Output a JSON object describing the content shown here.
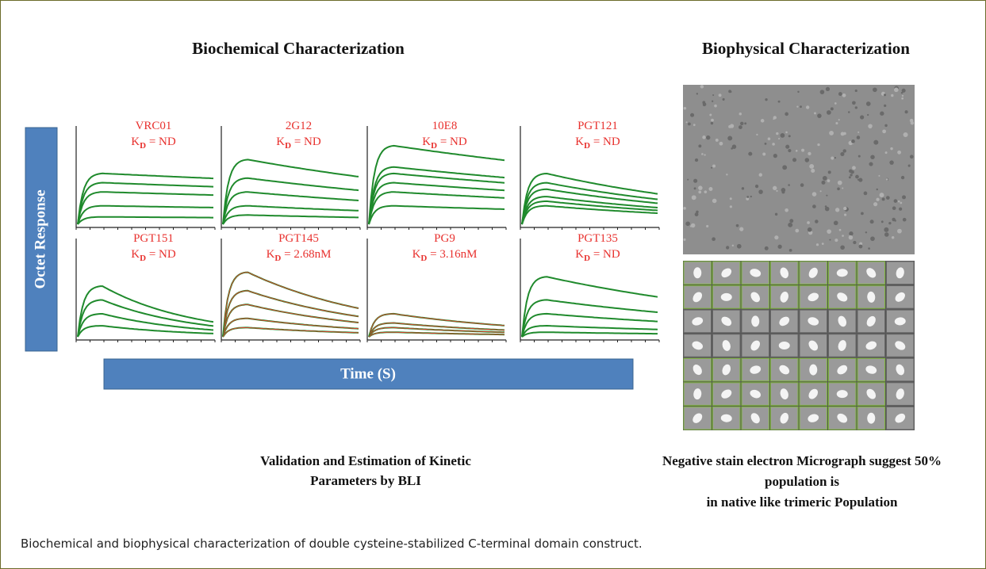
{
  "left": {
    "heading": "Biochemical Characterization",
    "y_label": "Octet Response",
    "x_label": "Time (S)",
    "panels": [
      {
        "antibody": "VRC01",
        "kd_symbol": "K",
        "kd_subscript": "D",
        "kd_text": " = ND"
      },
      {
        "antibody": "2G12",
        "kd_symbol": "K",
        "kd_subscript": "D",
        "kd_text": " = ND"
      },
      {
        "antibody": "10E8",
        "kd_symbol": "K",
        "kd_subscript": "D",
        "kd_text": " = ND"
      },
      {
        "antibody": "PGT121",
        "kd_symbol": "K",
        "kd_subscript": "D",
        "kd_text": " = ND"
      },
      {
        "antibody": "PGT151",
        "kd_symbol": "K",
        "kd_subscript": "D",
        "kd_text": " = ND"
      },
      {
        "antibody": "PGT145",
        "kd_symbol": "K",
        "kd_subscript": "D",
        "kd_text": " = 2.68nM"
      },
      {
        "antibody": "PG9",
        "kd_symbol": "K",
        "kd_subscript": "D",
        "kd_text": " = 3.16nM"
      },
      {
        "antibody": "PGT135",
        "kd_symbol": "K",
        "kd_subscript": "D",
        "kd_text": " = ND"
      }
    ],
    "note": [
      "Validation  and Estimation of Kinetic",
      "Parameters by BLI"
    ]
  },
  "right": {
    "heading": "Biophysical Characterization",
    "note": [
      "Negative stain electron Micrograph  suggest 50%",
      "population  is",
      "in native like trimeric  Population"
    ]
  },
  "caption": "Biochemical and biophysical characterization of double cysteine-stabilized C-terminal domain construct."
}
